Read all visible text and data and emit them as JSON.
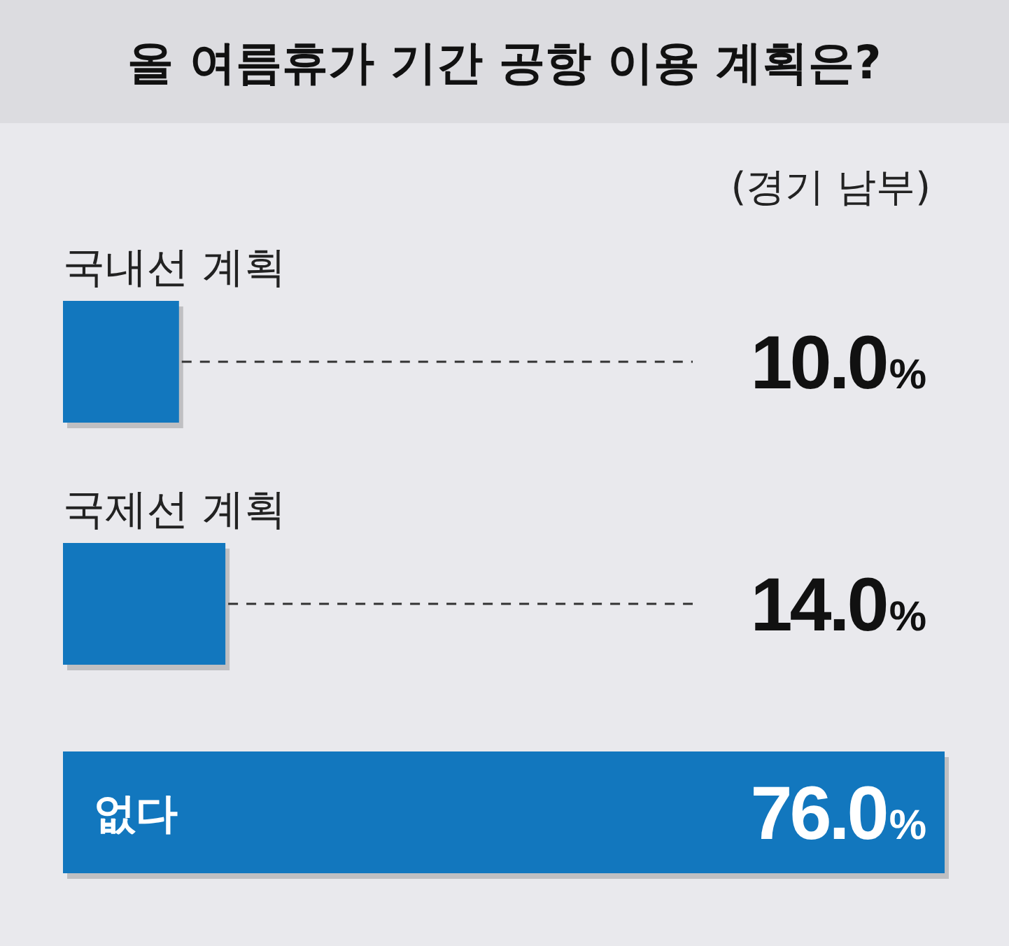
{
  "chart_data": {
    "type": "bar",
    "orientation": "horizontal",
    "title": "올 여름휴가 기간 공항 이용 계획은?",
    "subtitle": "(경기 남부)",
    "categories": [
      "국내선 계획",
      "국제선 계획",
      "없다"
    ],
    "values": [
      10.0,
      14.0,
      76.0
    ],
    "value_labels": [
      "10.0%",
      "14.0%",
      "76.0%"
    ],
    "color": "#1277be"
  }
}
